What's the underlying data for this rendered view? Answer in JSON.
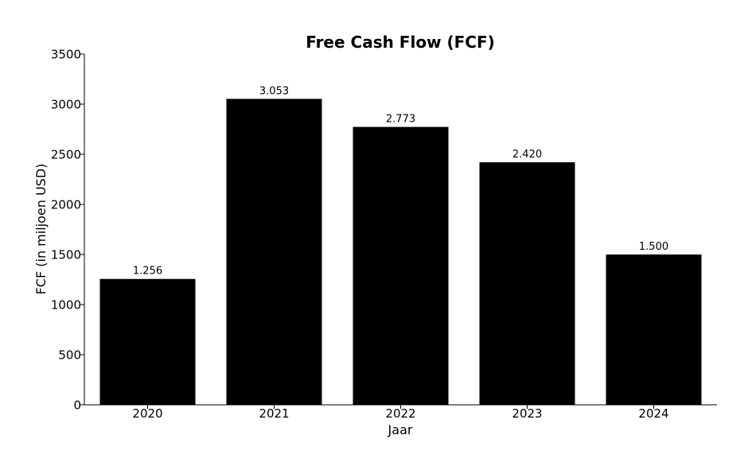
{
  "chart_data": {
    "type": "bar",
    "title": "Free Cash Flow (FCF)",
    "xlabel": "Jaar",
    "ylabel": "FCF (in miljoen USD)",
    "categories": [
      "2020",
      "2021",
      "2022",
      "2023",
      "2024"
    ],
    "values": [
      1256,
      3053,
      2773,
      2420,
      1500
    ],
    "data_labels": [
      "1.256",
      "3.053",
      "2.773",
      "2.420",
      "1.500"
    ],
    "ylim": [
      0,
      3500
    ],
    "yticks": [
      0,
      500,
      1000,
      1500,
      2000,
      2500,
      3000,
      3500
    ],
    "ytick_labels": [
      "0",
      "500",
      "1000",
      "1500",
      "2000",
      "2500",
      "3000",
      "3500"
    ],
    "grid": false,
    "legend": "none",
    "bar_color": "#000000"
  }
}
